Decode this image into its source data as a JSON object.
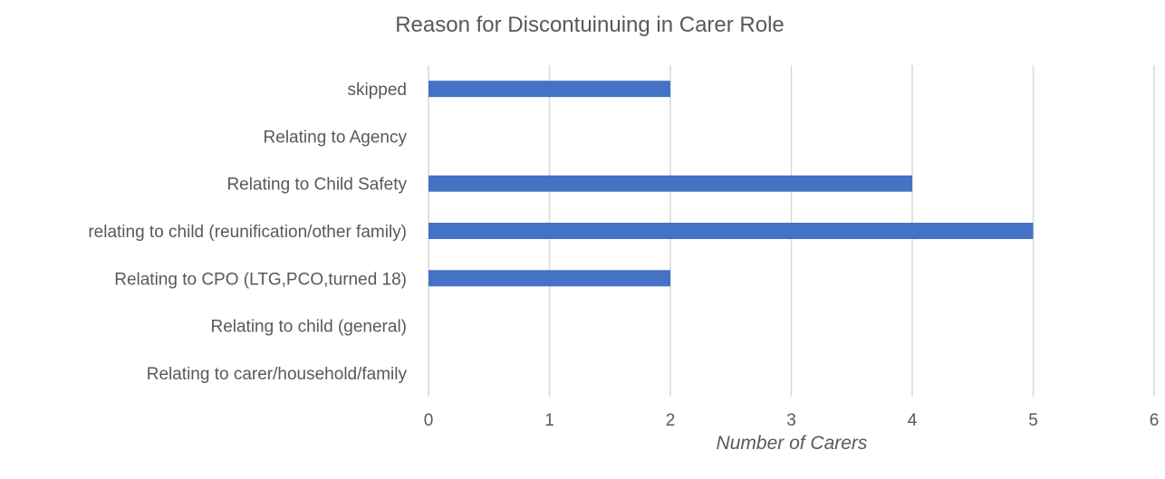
{
  "chart_data": {
    "type": "bar",
    "orientation": "horizontal",
    "title": "Reason for Discontuinuing in Carer Role",
    "xlabel": "Number of Carers",
    "ylabel": "",
    "categories": [
      "skipped",
      "Relating to Agency",
      "Relating to Child Safety",
      "relating to child (reunification/other family)",
      "Relating to CPO (LTG,PCO,turned 18)",
      "Relating to child (general)",
      "Relating to carer/household/family"
    ],
    "values": [
      2,
      0,
      4,
      5,
      2,
      0,
      0
    ],
    "xlim": [
      0,
      6
    ],
    "xticks": [
      "0",
      "1",
      "2",
      "3",
      "4",
      "5",
      "6"
    ],
    "grid": "vertical",
    "legend": "none",
    "colors": {
      "bar": "#4472C4",
      "grid": "#D9D9D9",
      "text": "#595959"
    }
  }
}
